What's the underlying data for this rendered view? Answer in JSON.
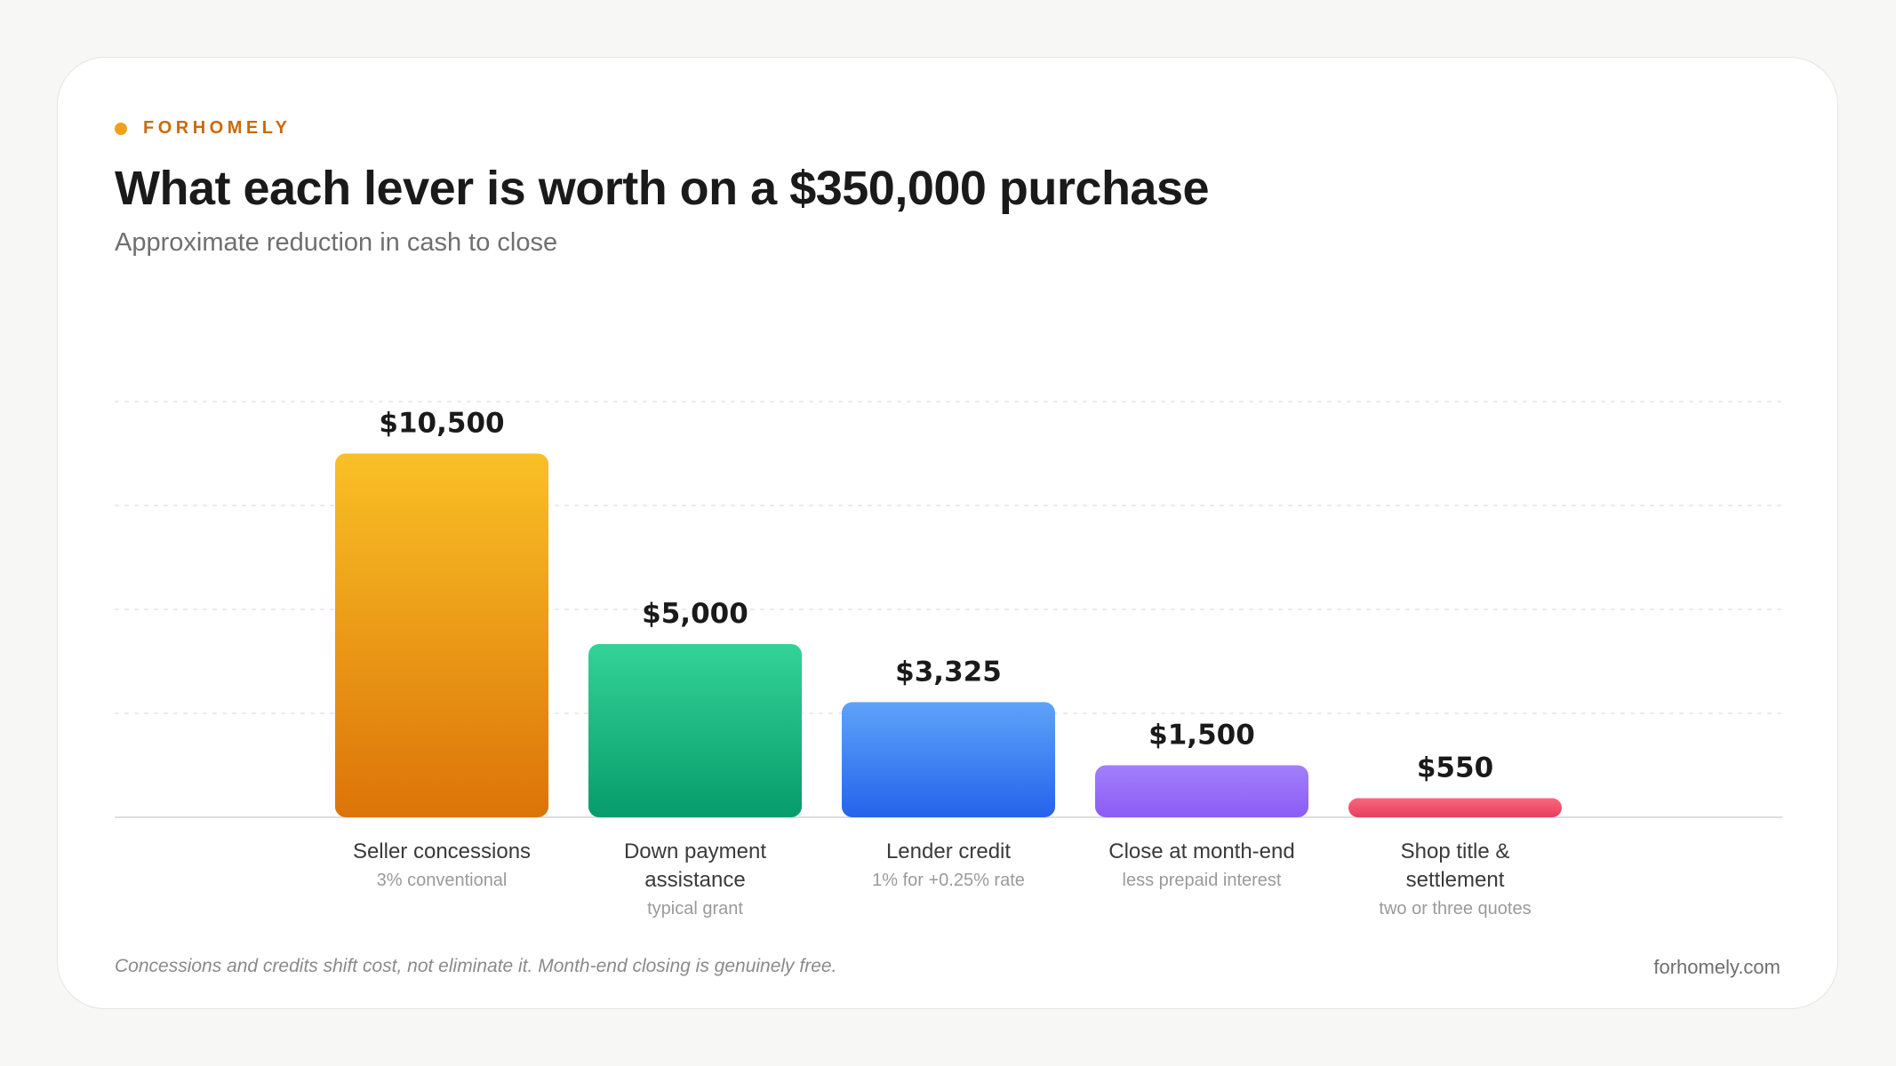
{
  "brand": {
    "name": "FORHOMELY",
    "dot_color": "#f0a11c"
  },
  "header": {
    "title": "What each lever is worth on a $350,000 purchase",
    "subtitle": "Approximate reduction in cash to close"
  },
  "footer": {
    "note": "Concessions and credits shift cost, not eliminate it. Month-end closing is genuinely free.",
    "site": "forhomely.com"
  },
  "chart_data": {
    "type": "bar",
    "categories": [
      "Seller concessions",
      "Down payment assistance",
      "Lender credit",
      "Close at month-end",
      "Shop title & settlement"
    ],
    "category_lines": [
      [
        "Seller concessions"
      ],
      [
        "Down payment",
        "assistance"
      ],
      [
        "Lender credit"
      ],
      [
        "Close at month-end"
      ],
      [
        "Shop title &",
        "settlement"
      ]
    ],
    "sublabels": [
      "3% conventional",
      "typical grant",
      "1% for +0.25% rate",
      "less prepaid interest",
      "two or three quotes"
    ],
    "values": [
      10500,
      5000,
      3325,
      1500,
      550
    ],
    "value_labels": [
      "$10,500",
      "$5,000",
      "$3,325",
      "$1,500",
      "$550"
    ],
    "colors": [
      [
        "#f9c026",
        "#dc7408"
      ],
      [
        "#33d398",
        "#079c6b"
      ],
      [
        "#5ea3fa",
        "#2563eb"
      ],
      [
        "#a27ffb",
        "#8b5cf6"
      ],
      [
        "#f8687e",
        "#e83e5c"
      ]
    ],
    "ylim": [
      0,
      12000
    ],
    "gridlines": [
      3000,
      6000,
      9000,
      12000
    ],
    "grid": true
  }
}
